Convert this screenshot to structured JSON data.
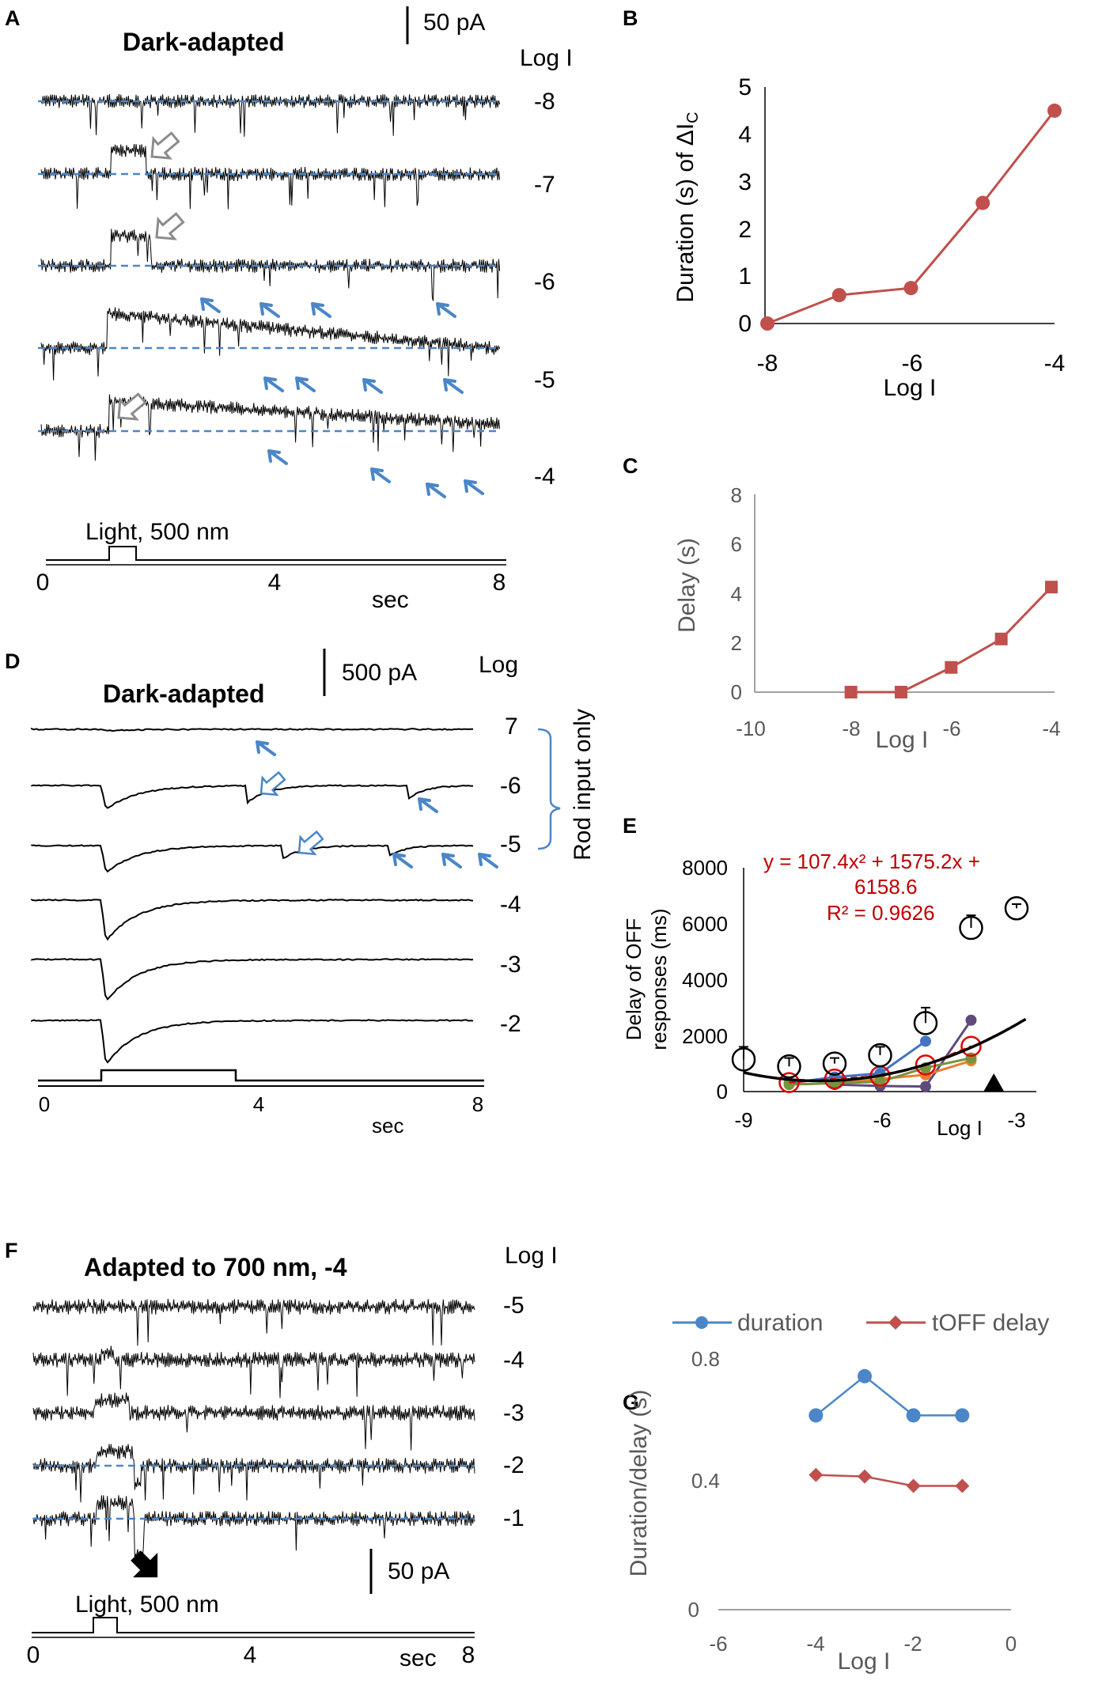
{
  "panel_letters": {
    "A": "A",
    "B": "B",
    "C": "C",
    "D": "D",
    "E": "E",
    "F": "F",
    "G": "G"
  },
  "trace_panels": {
    "A": {
      "title": "Dark-adapted",
      "scale_bar": "50 pA",
      "log_header": "Log I",
      "trace_labels": [
        "-8",
        "-7",
        "-6",
        "-5",
        "-4"
      ],
      "stimulus_label": "Light, 500 nm",
      "x_ticks": [
        "0",
        "4",
        "8"
      ],
      "x_unit": "sec"
    },
    "D": {
      "title": "Dark-adapted",
      "scale_bar": "500 pA",
      "log_header": "Log",
      "trace_labels": [
        "7",
        "-6",
        "-5",
        "-4",
        "-3",
        "-2"
      ],
      "bracket_label": "Rod input only",
      "x_ticks": [
        "0",
        "4",
        "8"
      ],
      "x_unit": "sec"
    },
    "F": {
      "title": "Adapted to 700 nm, -4",
      "scale_bar": "50 pA",
      "log_header": "Log I",
      "trace_labels": [
        "-5",
        "-4",
        "-3",
        "-2",
        "-1"
      ],
      "stimulus_label": "Light, 500 nm",
      "x_ticks": [
        "0",
        "4",
        "8"
      ],
      "x_unit": "sec"
    }
  },
  "chart_data": [
    {
      "id": "B",
      "type": "line",
      "x": [
        -8,
        -7,
        -6,
        -5,
        -4
      ],
      "series": [
        {
          "name": "Duration of ΔIc",
          "values": [
            0,
            0.6,
            0.75,
            2.55,
            4.5
          ],
          "color": "#c0504d",
          "marker": "circle"
        }
      ],
      "xlabel": "Log I",
      "ylabel": "Duration (s) of ΔI",
      "ylabel_sub": "C",
      "xlim": [
        -8,
        -4
      ],
      "ylim": [
        0,
        5
      ],
      "x_ticks": [
        "-8",
        "-6",
        "-4"
      ],
      "y_ticks": [
        "0",
        "1",
        "2",
        "3",
        "4",
        "5"
      ]
    },
    {
      "id": "C",
      "type": "line",
      "x": [
        -8,
        -7,
        -6,
        -5,
        -4
      ],
      "series": [
        {
          "name": "Delay",
          "values": [
            0,
            0,
            1,
            2.15,
            4.25
          ],
          "color": "#c0504d",
          "marker": "square"
        }
      ],
      "xlabel": "Log I",
      "ylabel": "Delay (s)",
      "xlim": [
        -10,
        -4
      ],
      "ylim": [
        0,
        8
      ],
      "x_ticks": [
        "-10",
        "-8",
        "-6",
        "-4"
      ],
      "y_ticks": [
        "0",
        "2",
        "4",
        "6",
        "8"
      ]
    },
    {
      "id": "E",
      "type": "scatter",
      "ylabel_line1": "Delay of OFF",
      "ylabel_line2": "responses (ms)",
      "xlabel": "Log I",
      "xlim": [
        -9,
        -2.8
      ],
      "ylim": [
        0,
        8000
      ],
      "x_ticks": [
        "-9",
        "-6",
        "-3"
      ],
      "y_ticks": [
        "0",
        "2000",
        "4000",
        "6000",
        "8000"
      ],
      "equation": "y = 107.4x² + 1575.2x +",
      "equation_line2": "6158.6",
      "r_squared": "R² = 0.9626",
      "fit_coefficients": [
        107.4,
        1575.2,
        6158.6
      ],
      "mean_points": {
        "x": [
          -9,
          -8,
          -7,
          -6,
          -5,
          -4,
          -3
        ],
        "y": [
          1150,
          900,
          1000,
          1300,
          2450,
          5850,
          6550
        ],
        "err": [
          450,
          300,
          200,
          300,
          550,
          450,
          150
        ]
      },
      "red_points": {
        "x": [
          -8,
          -7,
          -6,
          -5,
          -4
        ],
        "y": [
          320,
          450,
          550,
          950,
          1620
        ]
      },
      "cell_series": [
        {
          "color": "#4472c4",
          "x": [
            -8,
            -7,
            -6,
            -5
          ],
          "y": [
            300,
            520,
            650,
            1800
          ]
        },
        {
          "color": "#604a7b",
          "x": [
            -7,
            -6,
            -5,
            -4
          ],
          "y": [
            250,
            200,
            180,
            2550
          ]
        },
        {
          "color": "#ed7d31",
          "x": [
            -7,
            -6,
            -5,
            -4
          ],
          "y": [
            300,
            450,
            600,
            1100
          ]
        },
        {
          "color": "#77933c",
          "x": [
            -8,
            -7,
            -6,
            -5,
            -4
          ],
          "y": [
            250,
            300,
            350,
            850,
            1200
          ]
        }
      ],
      "marker_x": -3.5
    },
    {
      "id": "G",
      "type": "line",
      "x": [
        -4,
        -3,
        -2,
        -1
      ],
      "series": [
        {
          "name": "duration",
          "values": [
            0.62,
            0.745,
            0.62,
            0.62
          ],
          "color": "#4a86c8",
          "marker": "circle"
        },
        {
          "name": "tOFF delay",
          "values": [
            0.43,
            0.425,
            0.395,
            0.395
          ],
          "color": "#c0504d",
          "marker": "diamond"
        }
      ],
      "xlabel": "Log I",
      "ylabel": "Duration/delay (s)",
      "xlim": [
        -6,
        0
      ],
      "ylim": [
        0,
        0.8
      ],
      "x_ticks": [
        "-6",
        "-4",
        "-2",
        "0"
      ],
      "y_ticks": [
        "0",
        "0.4",
        "0.8"
      ],
      "legend": "top"
    }
  ]
}
